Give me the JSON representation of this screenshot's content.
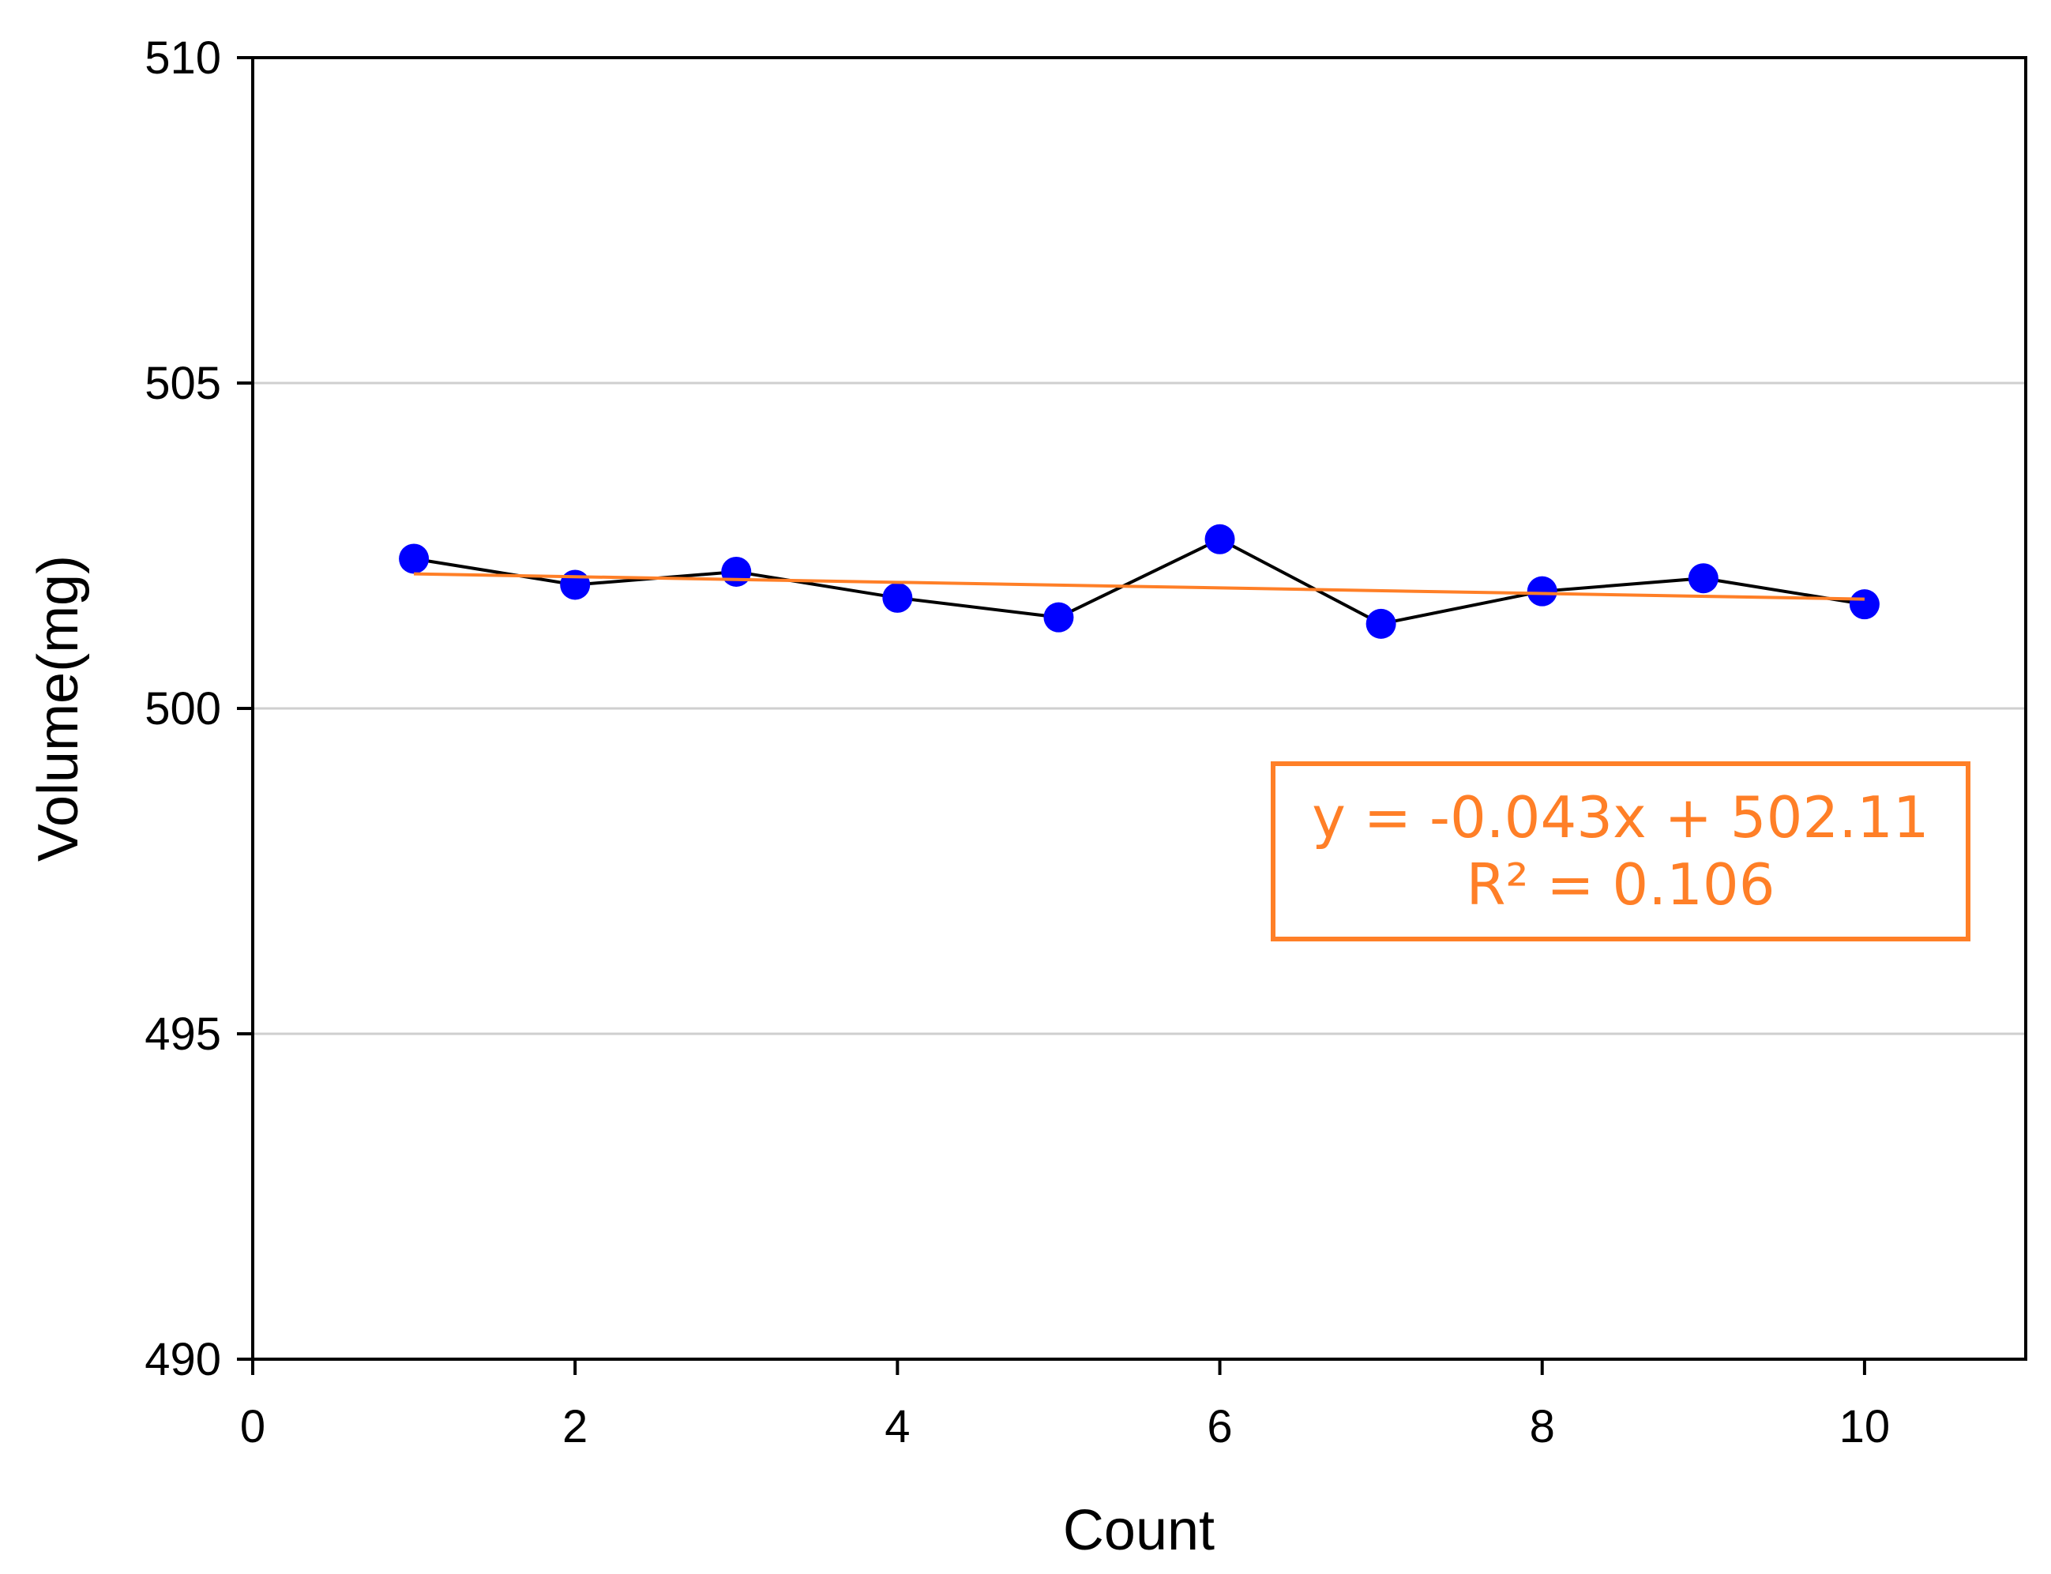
{
  "chart_data": {
    "type": "scatter",
    "xlabel": "Count",
    "ylabel": "Volume(mg)",
    "xlim": [
      0,
      11
    ],
    "ylim": [
      490,
      510
    ],
    "x_ticks": [
      0,
      2,
      4,
      6,
      8,
      10
    ],
    "y_ticks": [
      490,
      495,
      500,
      505,
      510
    ],
    "x_tick_labels": [
      "0",
      "2",
      "4",
      "6",
      "8",
      "10"
    ],
    "y_tick_labels": [
      "490",
      "495",
      "500",
      "505",
      "510"
    ],
    "grid": "horizontal",
    "series": [
      {
        "x": [
          1,
          2,
          3,
          4,
          5,
          6,
          7,
          8,
          9,
          10
        ],
        "y": [
          502.3,
          501.9,
          502.1,
          501.7,
          501.4,
          502.6,
          501.3,
          501.8,
          502.0,
          501.6
        ],
        "marker_color": "#0000ff",
        "line_color": "#000000"
      }
    ],
    "trendline": {
      "slope": -0.043,
      "intercept": 502.11,
      "color": "#ff7f27",
      "x_range": [
        1,
        10
      ]
    },
    "annotation": {
      "line1": "y = -0.043x + 502.11",
      "line2": "R² = 0.106",
      "placement": "right-middle",
      "color": "#ff7f27"
    }
  }
}
